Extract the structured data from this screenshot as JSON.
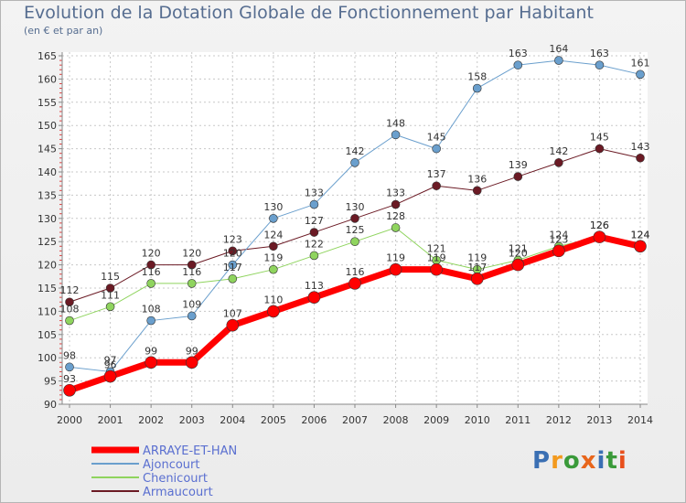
{
  "title": "Evolution de la Dotation Globale de Fonctionnement par Habitant",
  "subtitle": "(en € et par an)",
  "logo": {
    "letters": [
      "P",
      "r",
      "o",
      "x",
      "i",
      "t",
      "i"
    ],
    "colors": [
      "#3a6fb3",
      "#f39a1e",
      "#3a9a3a",
      "#e8661c",
      "#3a6fb3",
      "#3a9a3a",
      "#e84f1c"
    ]
  },
  "chart_data": {
    "type": "line",
    "x": [
      "2000",
      "2001",
      "2002",
      "2003",
      "2004",
      "2005",
      "2006",
      "2007",
      "2008",
      "2009",
      "2010",
      "2011",
      "2012",
      "2013",
      "2014"
    ],
    "yticks": [
      90,
      95,
      100,
      105,
      110,
      115,
      120,
      125,
      130,
      135,
      140,
      145,
      150,
      155,
      160,
      165
    ],
    "ylim": [
      90,
      165
    ],
    "grid": true,
    "legend_position": "bottom-left",
    "series": [
      {
        "name": "Armaucourt",
        "color": "#6b1a24",
        "width": 1,
        "marker": 4.5,
        "values": [
          112,
          115,
          120,
          120,
          123,
          124,
          127,
          130,
          133,
          137,
          136,
          139,
          142,
          145,
          143
        ]
      },
      {
        "name": "Chenicourt",
        "color": "#8fd45e",
        "width": 1,
        "marker": 4.5,
        "values": [
          108,
          111,
          116,
          116,
          117,
          119,
          122,
          125,
          128,
          121,
          119,
          121,
          124,
          126,
          124
        ]
      },
      {
        "name": "Ajoncourt",
        "color": "#6a9fcd",
        "width": 1,
        "marker": 4.5,
        "values": [
          98,
          97,
          108,
          109,
          120,
          130,
          133,
          142,
          148,
          145,
          158,
          163,
          164,
          163,
          161
        ]
      },
      {
        "name": "ARRAYE-ET-HAN",
        "color": "#ff0000",
        "width": 7,
        "marker": 6.5,
        "values": [
          93,
          96,
          99,
          99,
          107,
          110,
          113,
          116,
          119,
          119,
          117,
          120,
          123,
          126,
          124
        ]
      }
    ],
    "legend": [
      {
        "name": "ARRAYE-ET-HAN",
        "color": "#ff0000",
        "width": 7
      },
      {
        "name": "Ajoncourt",
        "color": "#6a9fcd",
        "width": 2
      },
      {
        "name": "Chenicourt",
        "color": "#8fd45e",
        "width": 2
      },
      {
        "name": "Armaucourt",
        "color": "#6b1a24",
        "width": 2
      }
    ]
  }
}
